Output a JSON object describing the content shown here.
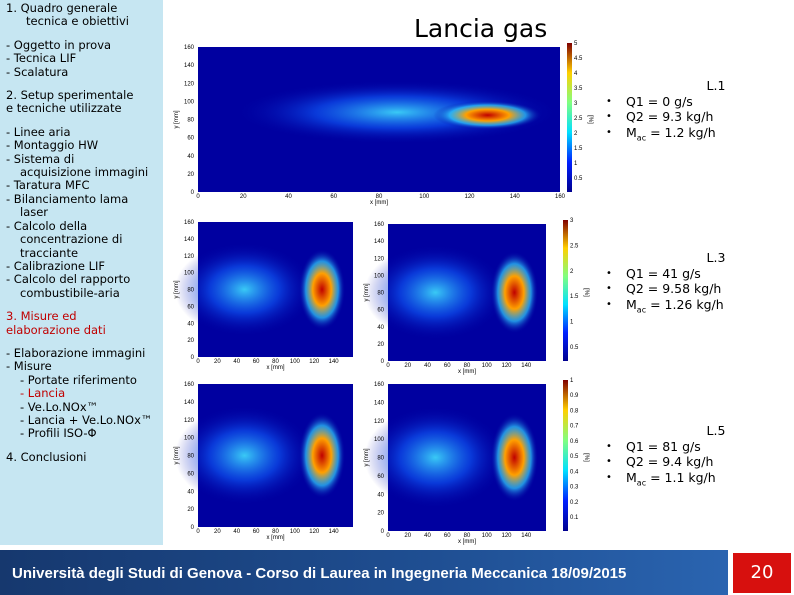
{
  "sidebar": {
    "lines": [
      {
        "text": "1. Quadro generale",
        "cls": "h"
      },
      {
        "text": "tecnica e obiettivi",
        "cls": "hi"
      },
      {
        "text": "",
        "cls": "sp"
      },
      {
        "text": "- Oggetto in prova",
        "cls": "i"
      },
      {
        "text": "- Tecnica LIF",
        "cls": "i"
      },
      {
        "text": "- Scalatura",
        "cls": "i"
      },
      {
        "text": "",
        "cls": "sp"
      },
      {
        "text": "2. Setup sperimentale",
        "cls": "h"
      },
      {
        "text": "e tecniche utilizzate",
        "cls": "h"
      },
      {
        "text": "",
        "cls": "sp"
      },
      {
        "text": "- Linee aria",
        "cls": "i"
      },
      {
        "text": "- Montaggio HW",
        "cls": "i"
      },
      {
        "text": "- Sistema di",
        "cls": "i"
      },
      {
        "text": "acquisizione immagini",
        "cls": "ii"
      },
      {
        "text": "- Taratura MFC",
        "cls": "i"
      },
      {
        "text": "- Bilanciamento lama",
        "cls": "i"
      },
      {
        "text": "laser",
        "cls": "ii"
      },
      {
        "text": "- Calcolo della",
        "cls": "i"
      },
      {
        "text": "concentrazione di",
        "cls": "ii"
      },
      {
        "text": "tracciante",
        "cls": "ii"
      },
      {
        "text": "- Calibrazione LIF",
        "cls": "i"
      },
      {
        "text": "- Calcolo del rapporto",
        "cls": "i"
      },
      {
        "text": "combustibile-aria",
        "cls": "ii"
      },
      {
        "text": "",
        "cls": "sp"
      },
      {
        "text": "3. Misure ed",
        "cls": "hr"
      },
      {
        "text": "elaborazione dati",
        "cls": "hr"
      },
      {
        "text": "",
        "cls": "sp"
      },
      {
        "text": "- Elaborazione immagini",
        "cls": "i"
      },
      {
        "text": "- Misure",
        "cls": "i"
      },
      {
        "text": "- Portate riferimento",
        "cls": "ii"
      },
      {
        "text": "- Lancia",
        "cls": "ii red"
      },
      {
        "text": "- Ve.Lo.NOx™",
        "cls": "ii"
      },
      {
        "text": "- Lancia + Ve.Lo.NOx™",
        "cls": "ii"
      },
      {
        "text": "- Profili ISO-Φ",
        "cls": "ii"
      },
      {
        "text": "",
        "cls": "sp"
      },
      {
        "text": "4. Conclusioni",
        "cls": "h"
      }
    ]
  },
  "title": "Lancia gas",
  "plots": [
    {
      "xlabel": "x [mm]",
      "ylabel": "y [mm]",
      "cblabel": "[%]",
      "xticks": [
        0,
        20,
        40,
        60,
        80,
        100,
        120,
        140,
        160
      ],
      "yticks": [
        160,
        140,
        120,
        100,
        80,
        60,
        40,
        20,
        0
      ],
      "cbticks": [
        5,
        4.5,
        4,
        3.5,
        3,
        2.5,
        2,
        1.5,
        1,
        0.5
      ]
    },
    {
      "xlabel": "x [mm]",
      "ylabel": "y [mm]",
      "xticks": [
        0,
        20,
        40,
        60,
        80,
        100,
        120,
        140
      ],
      "yticks": [
        160,
        140,
        120,
        100,
        80,
        60,
        40,
        20,
        0
      ]
    },
    {
      "xlabel": "x [mm]",
      "ylabel": "y [mm]",
      "cblabel": "[%]",
      "xticks": [
        0,
        20,
        40,
        60,
        80,
        100,
        120,
        140
      ],
      "yticks": [
        160,
        140,
        120,
        100,
        80,
        60,
        40,
        20,
        0
      ],
      "cbticks": [
        3,
        2.5,
        2,
        1.5,
        1,
        0.5
      ]
    },
    {
      "xlabel": "x [mm]",
      "ylabel": "y [mm]",
      "xticks": [
        0,
        20,
        40,
        60,
        80,
        100,
        120,
        140
      ],
      "yticks": [
        160,
        140,
        120,
        100,
        80,
        60,
        40,
        20,
        0
      ]
    },
    {
      "xlabel": "x [mm]",
      "ylabel": "y [mm]",
      "cblabel": "[%]",
      "xticks": [
        0,
        20,
        40,
        60,
        80,
        100,
        120,
        140
      ],
      "yticks": [
        160,
        140,
        120,
        100,
        80,
        60,
        40,
        20,
        0
      ],
      "cbticks": [
        1,
        0.9,
        0.8,
        0.7,
        0.6,
        0.5,
        0.4,
        0.3,
        0.2,
        0.1
      ]
    }
  ],
  "cases": [
    {
      "title": "L.1",
      "q1": "Q1 = 0 g/s",
      "q2": "Q2 = 9.3 kg/h",
      "m": "M",
      "sub": "ac",
      "mrest": " = 1.2 kg/h"
    },
    {
      "title": "L.3",
      "q1": "Q1 = 41 g/s",
      "q2": "Q2 = 9.58 kg/h",
      "m": "M",
      "sub": "ac",
      "mrest": " = 1.26 kg/h"
    },
    {
      "title": "L.5",
      "q1": "Q1 = 81 g/s",
      "q2": "Q2 = 9.4 kg/h",
      "m": "M",
      "sub": "ac",
      "mrest": " = 1.1 kg/h"
    }
  ],
  "footer": {
    "text": "Università degli Studi di Genova - Corso di Laurea in Ingegneria Meccanica 18/09/2015",
    "page": "20"
  }
}
